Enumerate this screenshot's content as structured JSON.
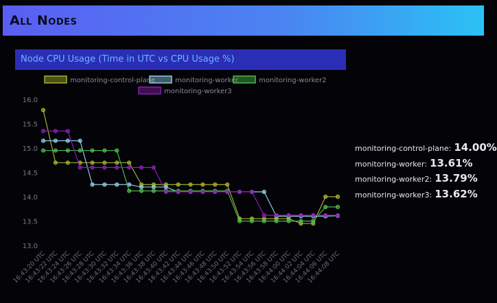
{
  "header": {
    "title": "All Nodes"
  },
  "chart_data": {
    "type": "line",
    "title": "Node CPU Usage (Time in UTC vs CPU Usage %)",
    "categories": [
      "16:43:20 UTC",
      "16:43:22 UTC",
      "16:43:24 UTC",
      "16:43:26 UTC",
      "16:43:28 UTC",
      "16:43:30 UTC",
      "16:43:32 UTC",
      "16:43:34 UTC",
      "16:43:36 UTC",
      "16:43:38 UTC",
      "16:43:40 UTC",
      "16:43:42 UTC",
      "16:43:44 UTC",
      "16:43:46 UTC",
      "16:43:48 UTC",
      "16:43:50 UTC",
      "16:43:52 UTC",
      "16:43:54 UTC",
      "16:43:56 UTC",
      "16:43:58 UTC",
      "16:44:00 UTC",
      "16:44:02 UTC",
      "16:44:04 UTC",
      "16:44:06 UTC",
      "16:44:08 UTC"
    ],
    "series": [
      {
        "name": "monitoring-control-plane",
        "color": "#a8b02c",
        "values": [
          15.78,
          14.7,
          14.7,
          14.7,
          14.7,
          14.7,
          14.7,
          14.7,
          14.25,
          14.25,
          14.25,
          14.25,
          14.25,
          14.25,
          14.25,
          14.25,
          13.55,
          13.55,
          13.55,
          13.55,
          13.55,
          13.45,
          13.45,
          14.0,
          14.0
        ]
      },
      {
        "name": "monitoring-worker",
        "color": "#8ecae0",
        "values": [
          15.15,
          15.15,
          15.15,
          15.15,
          14.25,
          14.25,
          14.25,
          14.25,
          14.2,
          14.2,
          14.2,
          14.1,
          14.1,
          14.1,
          14.1,
          14.1,
          14.1,
          14.1,
          14.1,
          13.6,
          13.6,
          13.6,
          13.6,
          13.6,
          13.61
        ]
      },
      {
        "name": "monitoring-worker2",
        "color": "#4cb84c",
        "values": [
          14.95,
          14.95,
          14.95,
          14.95,
          14.95,
          14.95,
          14.95,
          14.12,
          14.12,
          14.12,
          14.12,
          14.12,
          14.12,
          14.12,
          14.12,
          14.12,
          13.5,
          13.5,
          13.5,
          13.5,
          13.5,
          13.5,
          13.5,
          13.79,
          13.79
        ]
      },
      {
        "name": "monitoring-worker3",
        "color": "#8a1fb0",
        "values": [
          15.35,
          15.35,
          15.35,
          14.6,
          14.6,
          14.6,
          14.6,
          14.6,
          14.6,
          14.6,
          14.1,
          14.1,
          14.1,
          14.1,
          14.1,
          14.1,
          14.1,
          14.1,
          13.62,
          13.62,
          13.62,
          13.62,
          13.62,
          13.62,
          13.62
        ]
      }
    ],
    "ylim": [
      13.0,
      16.0
    ],
    "yticks": [
      {
        "value": 13,
        "label": "13.0"
      },
      {
        "value": 13.5,
        "label": "13.5"
      },
      {
        "value": 14,
        "label": "14.0"
      },
      {
        "value": 14.5,
        "label": "14.5"
      },
      {
        "value": 15,
        "label": "15.0"
      },
      {
        "value": 15.5,
        "label": "15.5"
      },
      {
        "value": 16,
        "label": "16.0"
      }
    ],
    "grid": false
  },
  "stats": [
    {
      "label": "monitoring-control-plane:",
      "value": "14.00%"
    },
    {
      "label": "monitoring-worker:",
      "value": "13.61%"
    },
    {
      "label": "monitoring-worker2:",
      "value": "13.79%"
    },
    {
      "label": "monitoring-worker3:",
      "value": "13.62%"
    }
  ]
}
